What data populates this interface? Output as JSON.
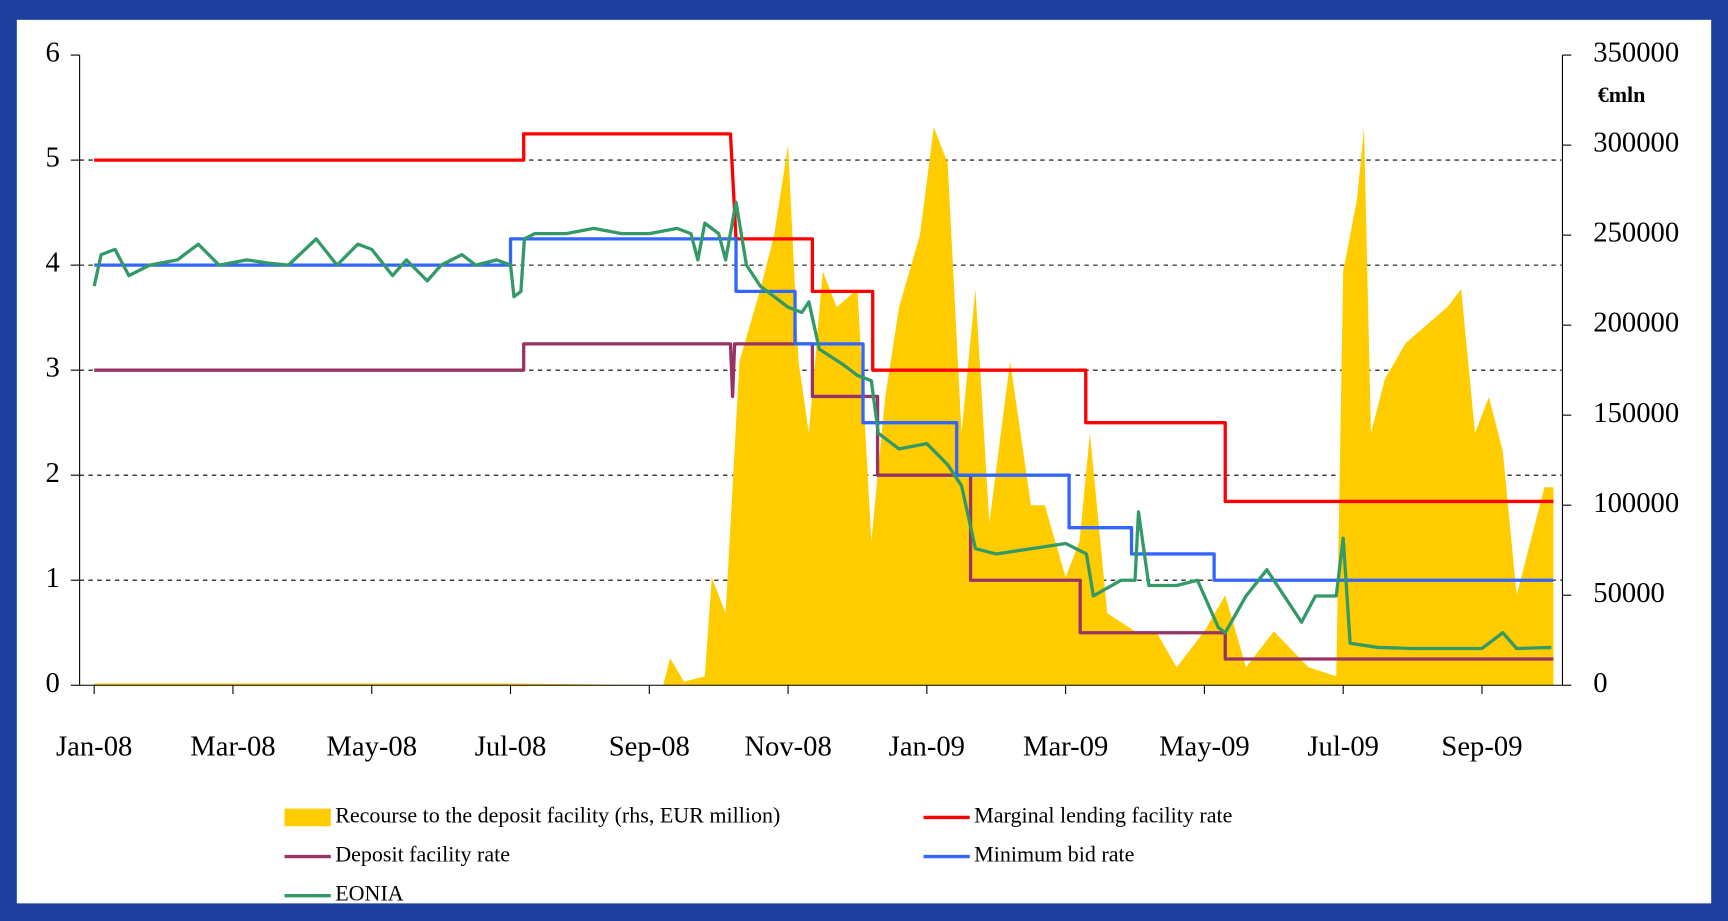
{
  "chart_data": {
    "type": "line",
    "y2_label": "€mln",
    "xlim": [
      -0.21,
      21.16
    ],
    "xticks": [
      {
        "value": 0,
        "label": "Jan-08"
      },
      {
        "value": 2,
        "label": "Mar-08"
      },
      {
        "value": 4,
        "label": "May-08"
      },
      {
        "value": 6,
        "label": "Jul-08"
      },
      {
        "value": 8,
        "label": "Sep-08"
      },
      {
        "value": 10,
        "label": "Nov-08"
      },
      {
        "value": 12,
        "label": "Jan-09"
      },
      {
        "value": 14,
        "label": "Mar-09"
      },
      {
        "value": 16,
        "label": "May-09"
      },
      {
        "value": 18,
        "label": "Jul-09"
      },
      {
        "value": 20,
        "label": "Sep-09"
      }
    ],
    "ylim": [
      0,
      6
    ],
    "yticks": [
      0,
      1,
      2,
      3,
      4,
      5,
      6
    ],
    "y2lim": [
      0,
      350000
    ],
    "y2ticks": [
      0,
      50000,
      100000,
      150000,
      200000,
      250000,
      300000,
      350000
    ],
    "grid": true,
    "series": [
      {
        "name": "Recourse to the deposit facility (rhs, EUR million)",
        "color": "#ffcc00",
        "axis": "y2",
        "kind": "area",
        "x": [
          0,
          6.0,
          8.2,
          8.3,
          8.5,
          8.8,
          8.9,
          9.1,
          9.3,
          9.6,
          9.8,
          10.0,
          10.15,
          10.3,
          10.5,
          10.7,
          11.0,
          11.2,
          11.4,
          11.6,
          11.9,
          12.1,
          12.3,
          12.5,
          12.7,
          12.9,
          13.2,
          13.5,
          13.7,
          14.0,
          14.2,
          14.35,
          14.6,
          15.0,
          15.3,
          15.6,
          16.0,
          16.3,
          16.6,
          17.0,
          17.5,
          17.9,
          18.0,
          18.2,
          18.3,
          18.4,
          18.6,
          18.9,
          19.2,
          19.5,
          19.7,
          19.9,
          20.1,
          20.3,
          20.5,
          20.7,
          20.9,
          21.03
        ],
        "values": [
          1000,
          1000,
          0,
          15000,
          2000,
          5000,
          60000,
          40000,
          180000,
          220000,
          250000,
          300000,
          180000,
          140000,
          230000,
          210000,
          220000,
          80000,
          160000,
          210000,
          250000,
          310000,
          290000,
          140000,
          220000,
          90000,
          180000,
          100000,
          100000,
          60000,
          80000,
          140000,
          40000,
          30000,
          30000,
          10000,
          30000,
          50000,
          10000,
          30000,
          10000,
          5000,
          230000,
          270000,
          310000,
          140000,
          170000,
          190000,
          200000,
          210000,
          220000,
          140000,
          160000,
          130000,
          50000,
          80000,
          110000,
          110000
        ]
      },
      {
        "name": "Marginal lending facility rate",
        "color": "#ff0000",
        "x": [
          0,
          6.19,
          6.19,
          9.17,
          9.25,
          10.35,
          10.35,
          11.22,
          11.22,
          14.29,
          14.29,
          16.3,
          16.3,
          21.03
        ],
        "values": [
          5,
          5,
          5.25,
          5.25,
          4.25,
          4.25,
          3.75,
          3.75,
          3,
          3,
          2.5,
          2.5,
          1.75,
          1.75
        ]
      },
      {
        "name": "Deposit facility rate",
        "color": "#993366",
        "x": [
          0,
          6.19,
          6.19,
          9.17,
          9.2,
          9.23,
          10.35,
          10.35,
          11.29,
          11.29,
          12.63,
          12.63,
          14.21,
          14.21,
          16.3,
          16.3,
          21.03
        ],
        "values": [
          3,
          3,
          3.25,
          3.25,
          2.75,
          3.25,
          3.25,
          2.75,
          2.75,
          2,
          2,
          1,
          1,
          0.5,
          0.5,
          0.25,
          0.25
        ]
      },
      {
        "name": "Minimum bid rate",
        "color": "#3366ff",
        "x": [
          0,
          6.0,
          6.0,
          9.25,
          9.25,
          10.1,
          10.1,
          11.08,
          11.08,
          12.43,
          12.43,
          14.05,
          14.05,
          14.95,
          14.95,
          16.14,
          16.14,
          21.03
        ],
        "values": [
          4,
          4,
          4.25,
          4.25,
          3.75,
          3.75,
          3.25,
          3.25,
          2.5,
          2.5,
          2,
          2,
          1.5,
          1.5,
          1.25,
          1.25,
          1,
          1
        ]
      },
      {
        "name": "EONIA",
        "color": "#339966",
        "x": [
          0,
          0.1,
          0.3,
          0.5,
          0.8,
          1.2,
          1.5,
          1.8,
          2.2,
          2.5,
          2.8,
          3.2,
          3.5,
          3.8,
          4.0,
          4.3,
          4.5,
          4.8,
          5.0,
          5.3,
          5.5,
          5.8,
          6.0,
          6.05,
          6.15,
          6.2,
          6.35,
          6.8,
          7.2,
          7.6,
          8.0,
          8.4,
          8.6,
          8.7,
          8.8,
          9.0,
          9.1,
          9.25,
          9.4,
          9.6,
          10.0,
          10.2,
          10.3,
          10.45,
          10.8,
          11.0,
          11.2,
          11.3,
          11.6,
          12.0,
          12.3,
          12.5,
          12.7,
          13.0,
          13.5,
          14.0,
          14.3,
          14.4,
          14.8,
          15.0,
          15.05,
          15.2,
          15.6,
          15.9,
          16.1,
          16.2,
          16.3,
          16.6,
          16.9,
          17.2,
          17.4,
          17.6,
          17.9,
          18.0,
          18.1,
          18.5,
          19.0,
          19.5,
          20.0,
          20.3,
          20.5,
          21.0
        ],
        "values": [
          3.8,
          4.1,
          4.15,
          3.9,
          4.0,
          4.05,
          4.2,
          4.0,
          4.05,
          4.02,
          4.0,
          4.25,
          4.0,
          4.2,
          4.15,
          3.9,
          4.05,
          3.85,
          4.0,
          4.1,
          4.0,
          4.05,
          4.0,
          3.7,
          3.75,
          4.25,
          4.3,
          4.3,
          4.35,
          4.3,
          4.3,
          4.35,
          4.3,
          4.05,
          4.4,
          4.3,
          4.05,
          4.6,
          4.0,
          3.8,
          3.6,
          3.55,
          3.65,
          3.2,
          3.05,
          2.95,
          2.9,
          2.4,
          2.25,
          2.3,
          2.1,
          1.9,
          1.3,
          1.25,
          1.3,
          1.35,
          1.25,
          0.85,
          1.0,
          1.0,
          1.65,
          0.95,
          0.95,
          1.0,
          0.7,
          0.55,
          0.5,
          0.85,
          1.1,
          0.8,
          0.6,
          0.85,
          0.85,
          1.4,
          0.4,
          0.36,
          0.35,
          0.35,
          0.35,
          0.5,
          0.35,
          0.36
        ]
      }
    ]
  }
}
